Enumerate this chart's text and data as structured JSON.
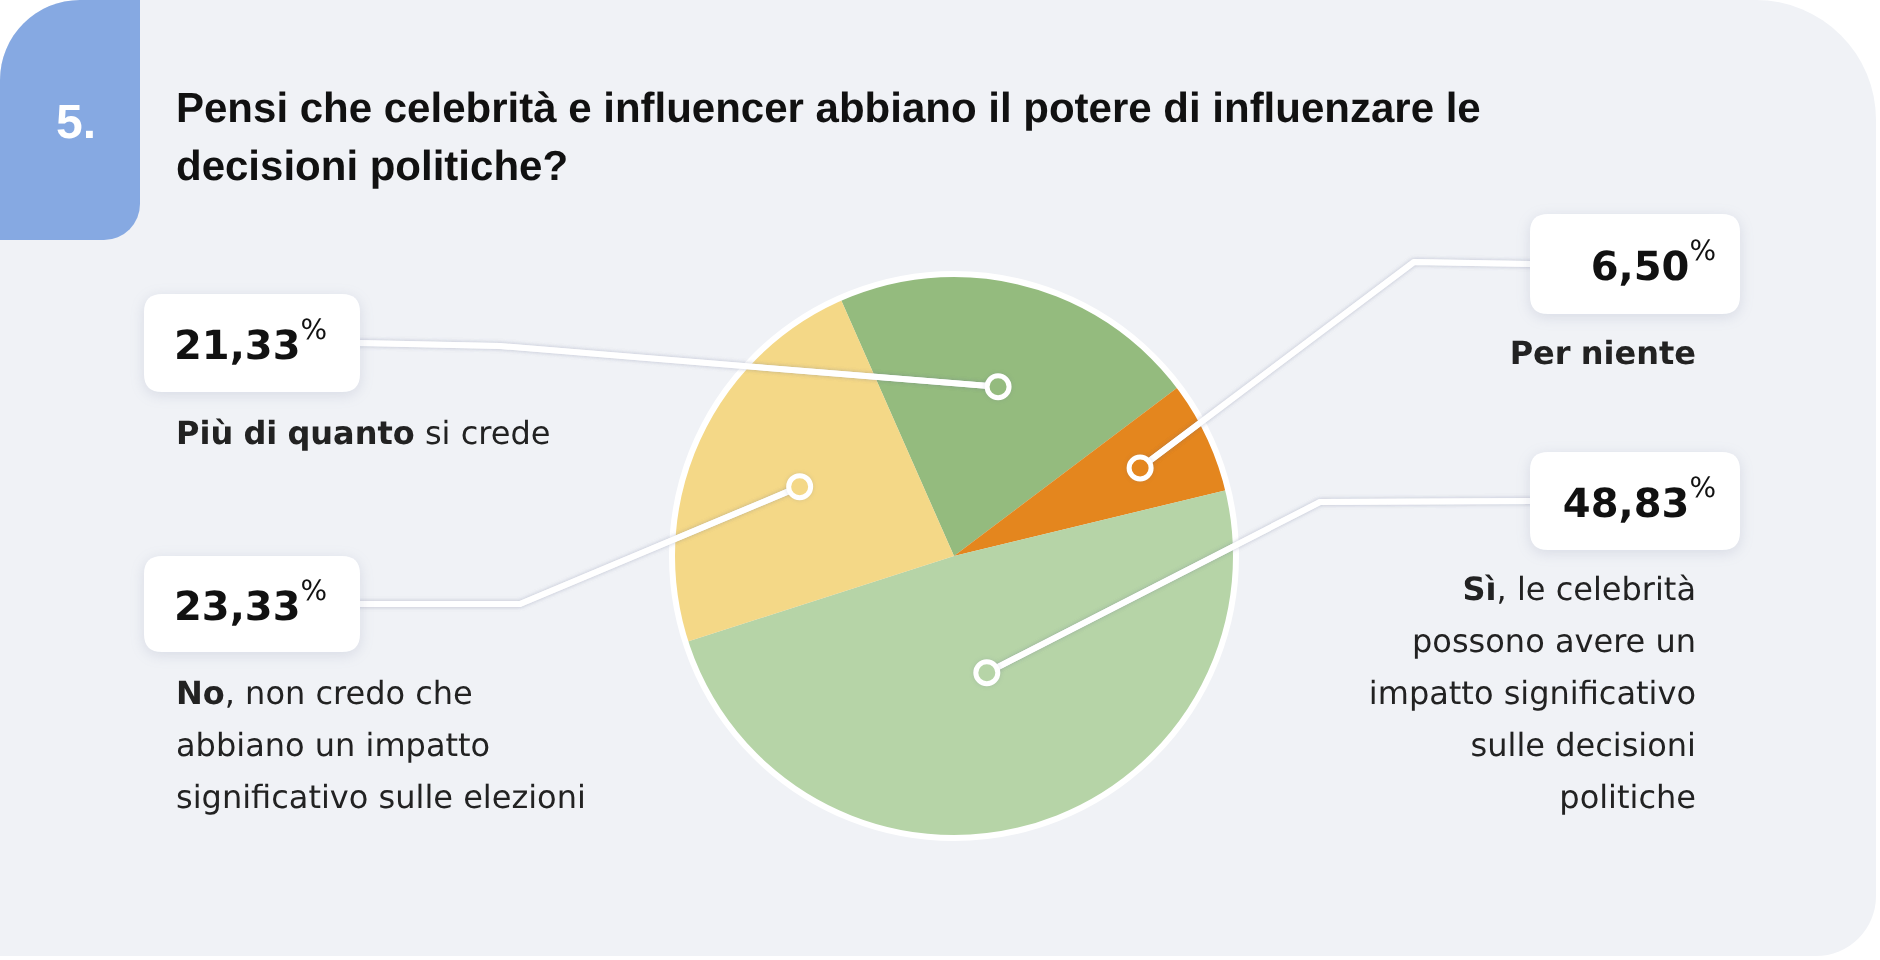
{
  "chart_data": {
    "type": "pie",
    "title": "Pensi che celebrità e influencer abbiano il potere di influenzare le decisioni politiche?",
    "annotations": [
      "5."
    ],
    "categories": [
      "Più di quanto si crede",
      "Per niente",
      "Sì, le celebrità possono avere un impatto significativo sulle decisioni politiche",
      "No, non credo che abbiano un impatto significativo sulle elezioni"
    ],
    "values": [
      21.33,
      6.5,
      48.83,
      23.33
    ],
    "colors": [
      "#94bb7e",
      "#e4861e",
      "#b6d4a7",
      "#f4d887"
    ],
    "value_labels": [
      "21,33$^{%}$",
      "6,50$^{%}$",
      "48,83$^{%}$",
      "23,33$^{%}$"
    ]
  }
}
